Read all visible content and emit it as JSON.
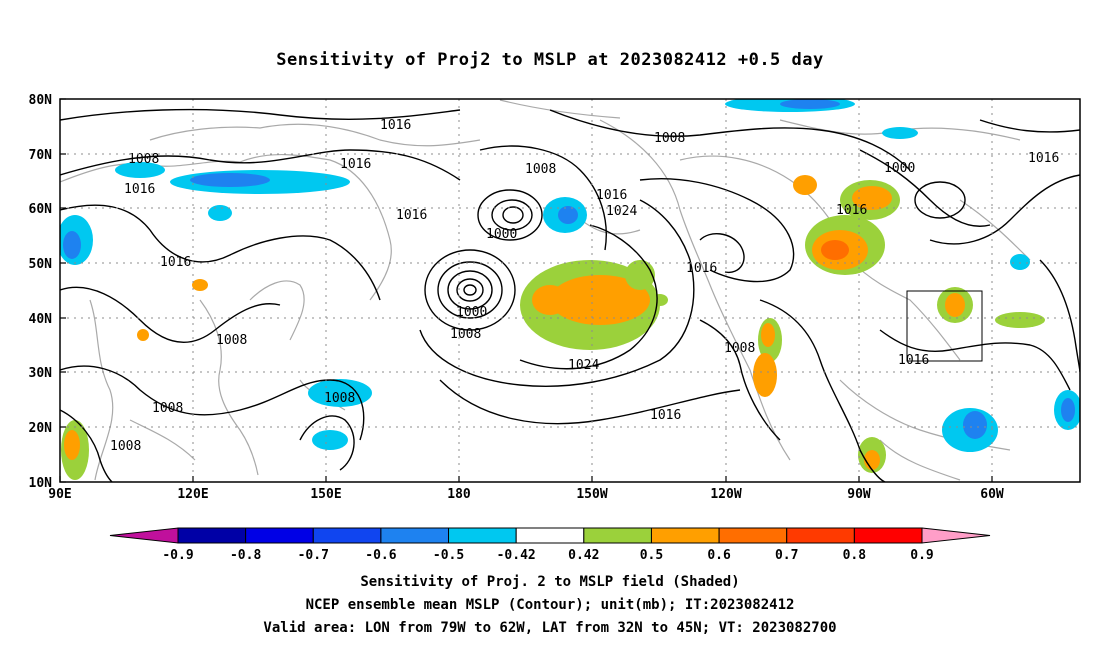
{
  "title": "Sensitivity of Proj2 to MSLP at 2023082412 +0.5 day",
  "axes": {
    "lat_ticks": [
      "80N",
      "70N",
      "60N",
      "50N",
      "40N",
      "30N",
      "20N",
      "10N"
    ],
    "lon_ticks": [
      "90E",
      "120E",
      "150E",
      "180",
      "150W",
      "120W",
      "90W",
      "60W"
    ],
    "lon_range": [
      "90E",
      "45W"
    ],
    "lat_range": [
      "10N",
      "80N"
    ],
    "grid": "dotted"
  },
  "contour_labels": [
    "1016",
    "1008",
    "1016",
    "1016",
    "1008",
    "1016",
    "1016",
    "1024",
    "1000",
    "1016",
    "1000",
    "1008",
    "1024",
    "1016",
    "1008",
    "1008",
    "1008",
    "1016",
    "1016",
    "1008",
    "1016",
    "1008",
    "1000",
    "1008",
    "1016"
  ],
  "colorbar": {
    "labels": [
      "-0.9",
      "-0.8",
      "-0.7",
      "-0.6",
      "-0.5",
      "-0.42",
      "0.42",
      "0.5",
      "0.6",
      "0.7",
      "0.8",
      "0.9"
    ],
    "colors": [
      "#c0109c",
      "#0000a6",
      "#0000e6",
      "#1045f0",
      "#1e82f0",
      "#00c8f0",
      "#ffffff",
      "#9bd13b",
      "#ff9f00",
      "#ff6e00",
      "#ff3a00",
      "#ff0000",
      "#ff9ec8"
    ]
  },
  "captions": {
    "line1": "Sensitivity of Proj. 2 to MSLP field (Shaded)",
    "line2": "NCEP ensemble mean MSLP (Contour); unit(mb); IT:2023082412",
    "line3": "Valid area: LON from 79W to 62W, LAT from 32N to 45N; VT: 2023082700"
  },
  "valid_area": {
    "lon": [
      "79W",
      "62W"
    ],
    "lat": [
      "32N",
      "45N"
    ]
  }
}
